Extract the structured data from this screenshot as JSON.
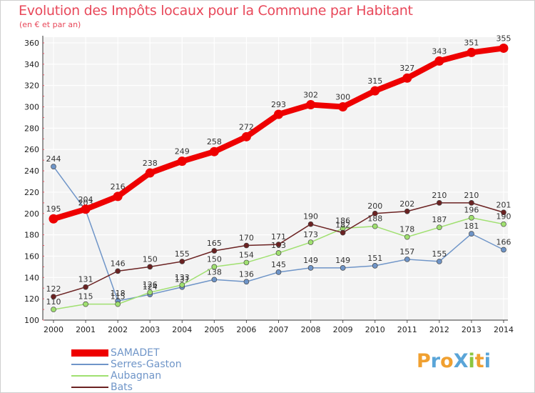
{
  "header": {
    "title": "Evolution des Impôts locaux pour la Commune par Habitant",
    "subtitle": "(en € et par an)"
  },
  "logo": {
    "text": "ProXiti",
    "letters": [
      {
        "ch": "P",
        "color": "#f0a030"
      },
      {
        "ch": "r",
        "color": "#5aa5d8"
      },
      {
        "ch": "o",
        "color": "#f0a030"
      },
      {
        "ch": "X",
        "color": "#5aa5d8"
      },
      {
        "ch": "i",
        "color": "#8cc63f"
      },
      {
        "ch": "t",
        "color": "#f0a030"
      },
      {
        "ch": "i",
        "color": "#5aa5d8"
      }
    ]
  },
  "chart_data": {
    "type": "line",
    "x": [
      "2000",
      "2001",
      "2002",
      "2003",
      "2004",
      "2005",
      "2006",
      "2007",
      "2008",
      "2009",
      "2010",
      "2011",
      "2012",
      "2013",
      "2014"
    ],
    "ylim": [
      100,
      360
    ],
    "yticks": [
      100,
      120,
      140,
      160,
      180,
      200,
      220,
      240,
      260,
      280,
      300,
      320,
      340,
      360
    ],
    "grid": true,
    "legend_position": "bottom-left",
    "series": [
      {
        "name": "SAMADET",
        "color": "#ee0000",
        "values": [
          195,
          204,
          216,
          238,
          249,
          258,
          272,
          293,
          302,
          300,
          315,
          327,
          343,
          351,
          355
        ]
      },
      {
        "name": "Serres-Gaston",
        "color": "#6f95c8",
        "values": [
          244,
          203,
          118,
          124,
          131,
          138,
          136,
          145,
          149,
          149,
          151,
          157,
          155,
          181,
          166
        ]
      },
      {
        "name": "Aubagnan",
        "color": "#a0e070",
        "values": [
          110,
          115,
          115,
          126,
          133,
          150,
          154,
          163,
          173,
          186,
          188,
          178,
          187,
          196,
          190
        ]
      },
      {
        "name": "Bats",
        "color": "#6b2222",
        "values": [
          122,
          131,
          146,
          150,
          155,
          165,
          170,
          171,
          190,
          182,
          200,
          202,
          210,
          210,
          201
        ]
      }
    ]
  }
}
